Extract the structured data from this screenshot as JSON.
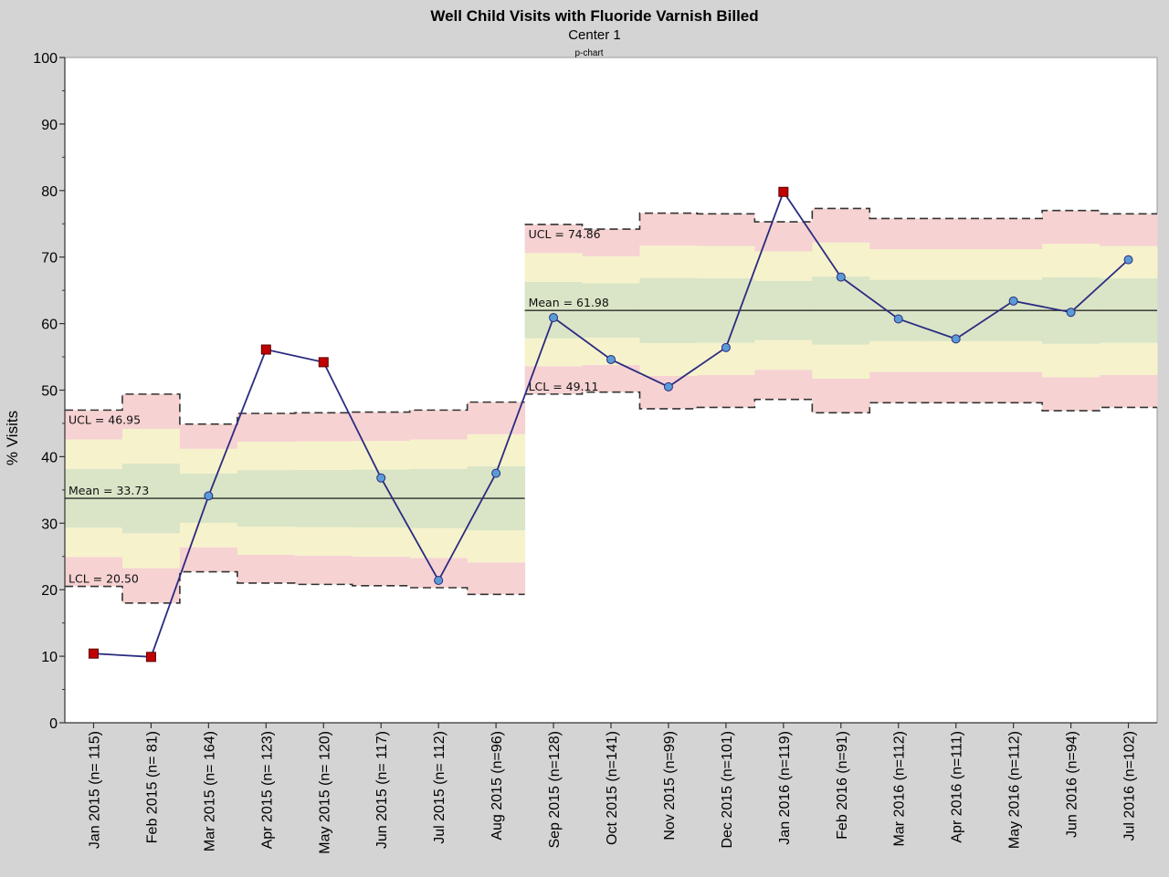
{
  "chart_data": {
    "type": "line",
    "title": "Well Child Visits with Fluoride Varnish Billed",
    "subtitle": "Center 1",
    "subtitle2": "p-chart",
    "ylabel": "% Visits",
    "xlabel": "",
    "ylim": [
      0,
      100
    ],
    "yticks": [
      0,
      10,
      20,
      30,
      40,
      50,
      60,
      70,
      80,
      90,
      100
    ],
    "grid": false,
    "categories": [
      "Jan 2015 (n= 115)",
      "Feb 2015 (n= 81)",
      "Mar 2015 (n= 164)",
      "Apr 2015 (n= 123)",
      "May 2015 (n= 120)",
      "Jun 2015 (n= 117)",
      "Jul 2015 (n= 112)",
      "Aug 2015 (n=96)",
      "Sep 2015 (n=128)",
      "Oct 2015 (n=141)",
      "Nov 2015 (n=99)",
      "Dec 2015 (n=101)",
      "Jan 2016 (n=119)",
      "Feb 2016 (n=91)",
      "Mar 2016 (n=112)",
      "Apr 2016 (n=111)",
      "May 2016 (n=112)",
      "Jun 2016 (n=94)",
      "Jul 2016 (n=102)"
    ],
    "series": [
      {
        "values": [
          10.4,
          9.9,
          34.1,
          56.1,
          54.2,
          36.8,
          21.4,
          37.5,
          60.9,
          54.6,
          50.5,
          56.4,
          79.8,
          67.0,
          60.7,
          57.7,
          63.4,
          61.7,
          69.6
        ],
        "out_of_control": [
          true,
          true,
          false,
          true,
          true,
          false,
          false,
          false,
          false,
          false,
          false,
          false,
          true,
          false,
          false,
          false,
          false,
          false,
          false
        ]
      }
    ],
    "phases": [
      {
        "start": 0,
        "end": 7,
        "mean": 33.73,
        "ucl_label": "UCL = 46.95",
        "mean_label": "Mean = 33.73",
        "lcl_label": "LCL = 20.50"
      },
      {
        "start": 8,
        "end": 18,
        "mean": 61.98,
        "ucl_label": "UCL = 74.86",
        "mean_label": "Mean = 61.98",
        "lcl_label": "LCL = 49.11"
      }
    ],
    "ucl": [
      47.0,
      49.4,
      44.9,
      46.5,
      46.6,
      46.7,
      47.0,
      48.2,
      74.9,
      74.2,
      76.6,
      76.5,
      75.3,
      77.3,
      75.8,
      75.8,
      75.8,
      77.0,
      76.5
    ],
    "lcl": [
      20.5,
      18.0,
      22.7,
      21.0,
      20.8,
      20.6,
      20.3,
      19.3,
      49.4,
      49.7,
      47.2,
      47.4,
      48.6,
      46.6,
      48.1,
      48.1,
      48.1,
      46.9,
      47.4
    ],
    "colors": {
      "line": "#2b2b80",
      "point": "#5b9bd5",
      "point_out": "#c00000",
      "zone_outer": "#f6d2d2",
      "zone_middle": "#f6f2cc",
      "zone_inner": "#d9e5c6",
      "plot_bg": "#ffffff",
      "frame_bg": "#d4d4d4"
    }
  }
}
